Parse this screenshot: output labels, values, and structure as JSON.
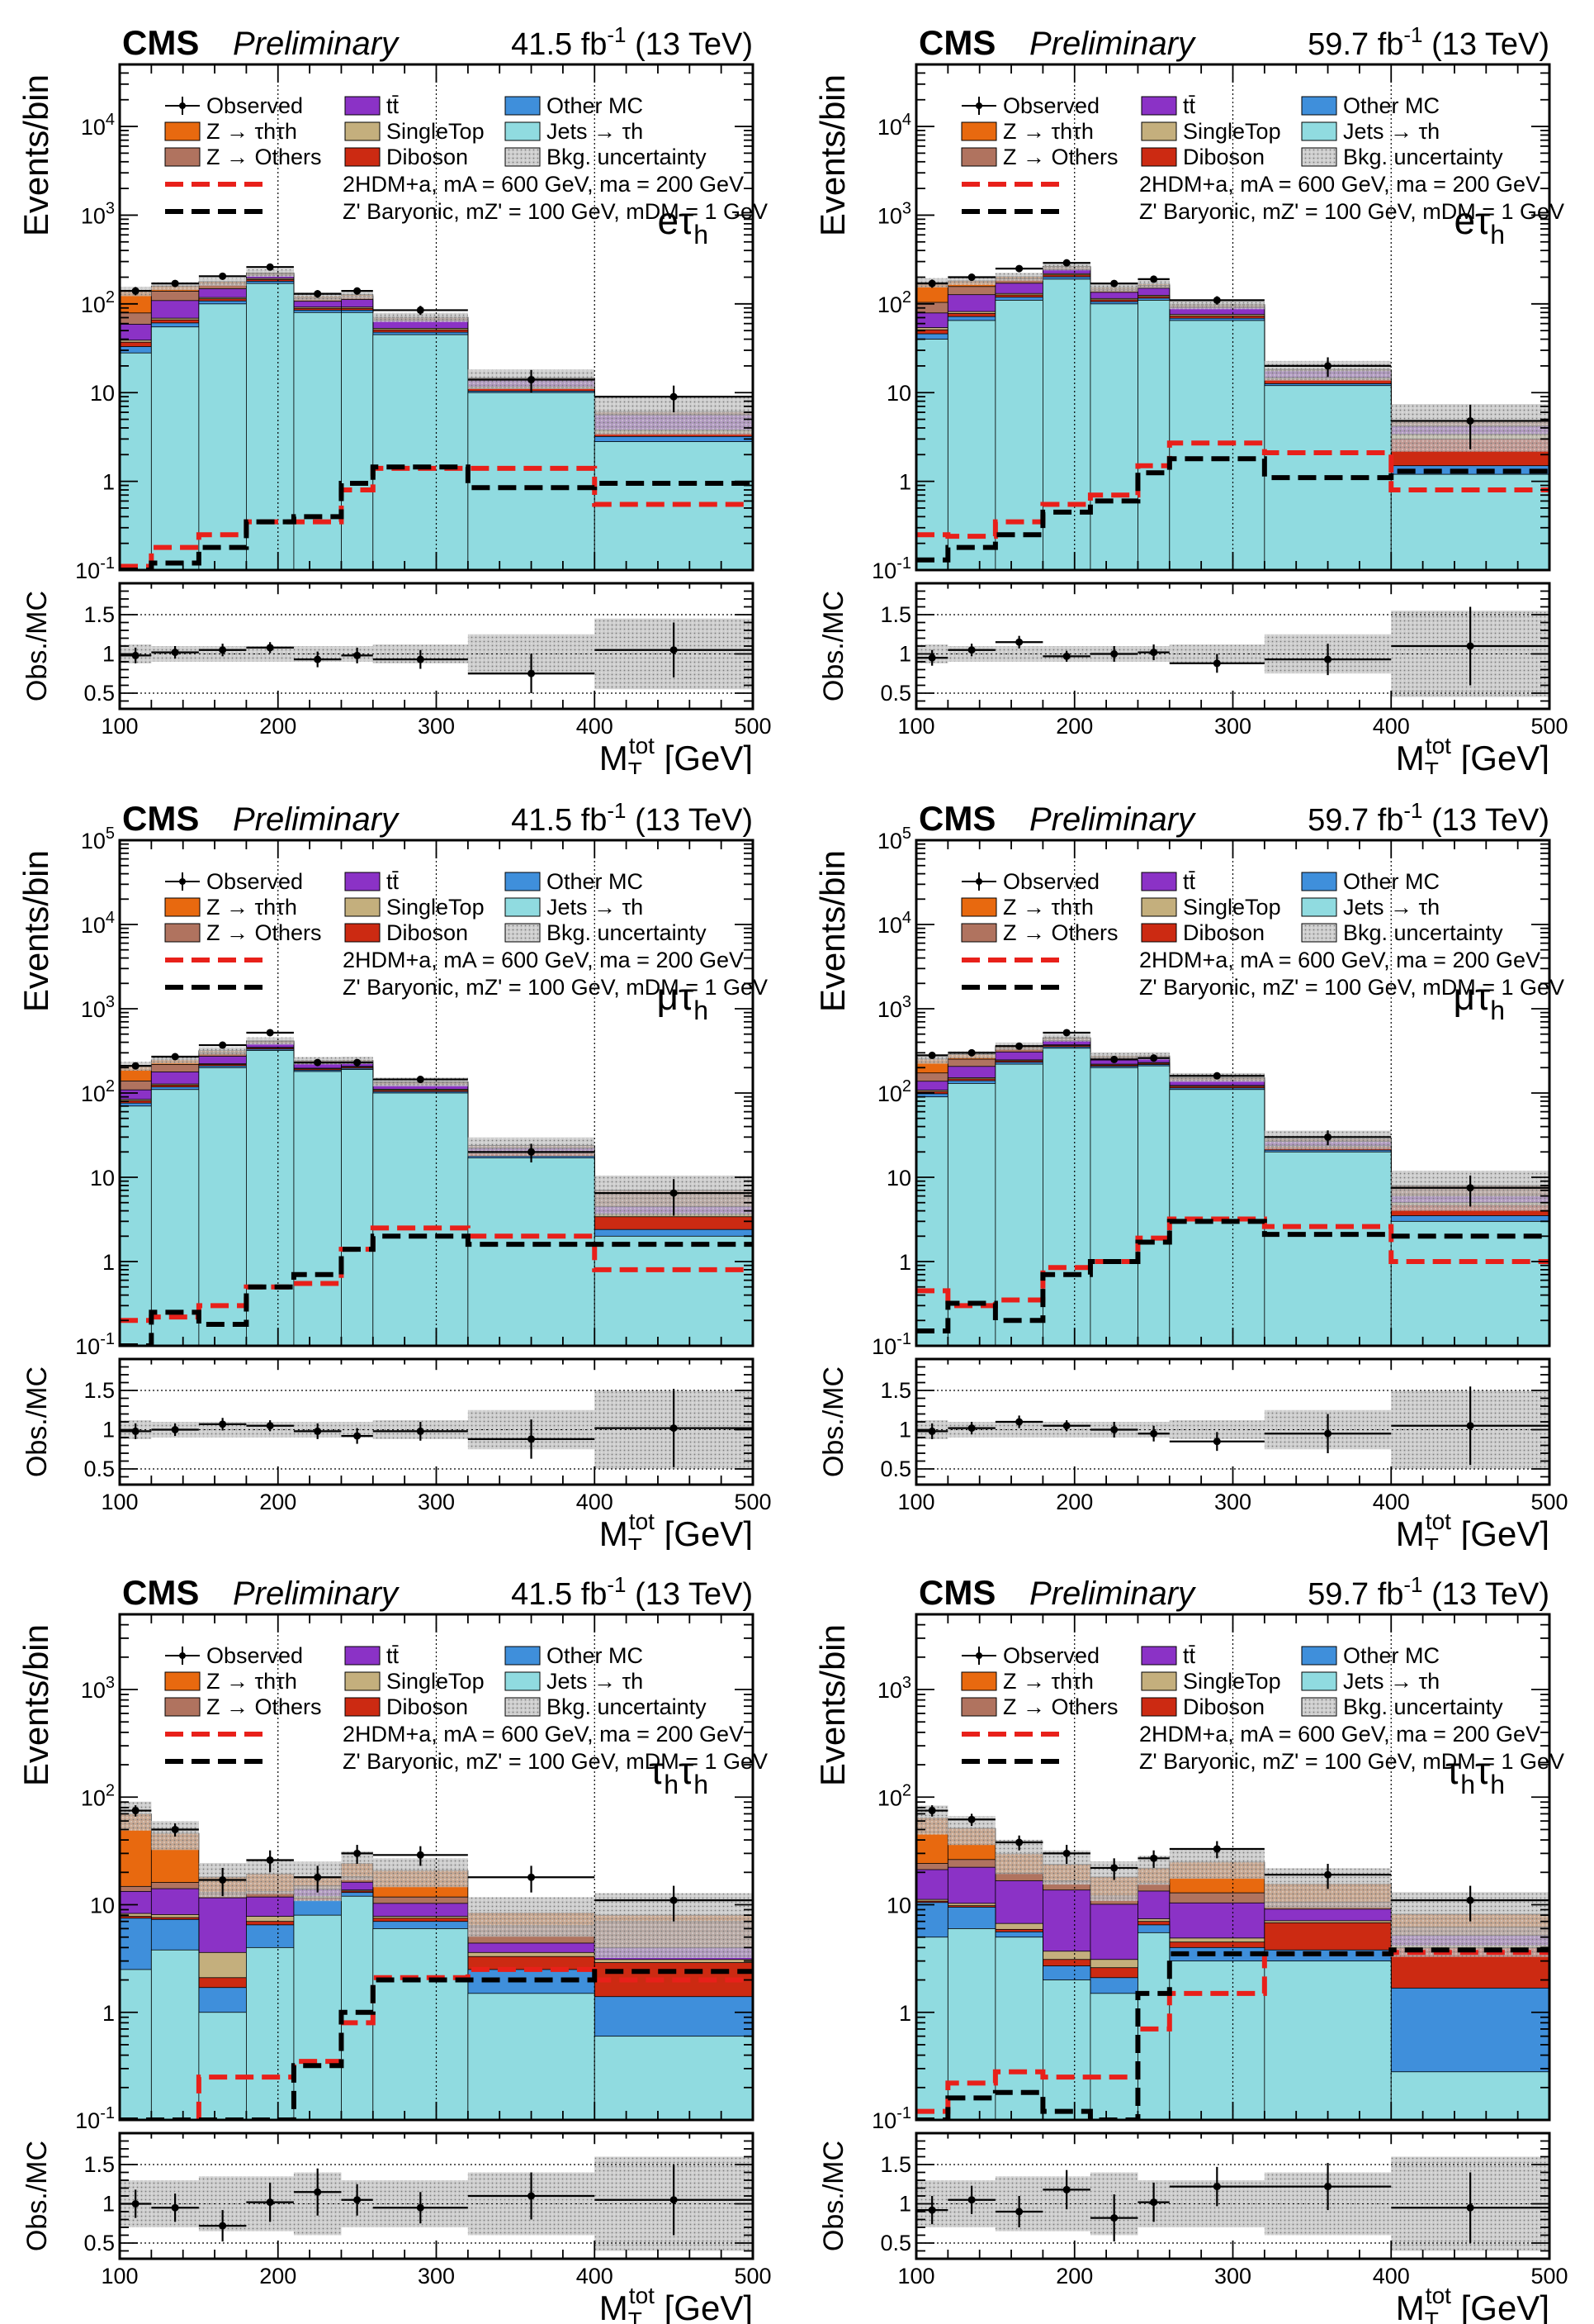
{
  "legend": {
    "observed": "Observed",
    "ztt": "Z → τhτh",
    "zothers": "Z → Others",
    "ttbar": "tt̄",
    "singletop": "SingleTop",
    "diboson": "Diboson",
    "othermc": "Other MC",
    "jetstau": "Jets → τh",
    "bkgunc": "Bkg. uncertainty",
    "sig1": "2HDM+a, mA = 600 GeV, ma = 200 GeV",
    "sig2": "Z' Baryonic, mZ' = 100 GeV, mDM = 1 GeV"
  },
  "labels": {
    "cms": "CMS",
    "preliminary": "Preliminary",
    "ylabel_main": "Events/bin",
    "ylabel_ratio": "Obs./MC",
    "xlabel": "MTtot [GeV]"
  },
  "colors": {
    "jets": "#90DBE0",
    "othermc": "#3F8FDB",
    "diboson": "#CC2A12",
    "singletop": "#C4AF7D",
    "ttbar": "#8B32C6",
    "zothers": "#B0735F",
    "ztt": "#E8690F",
    "sig1": "#E8201A",
    "sig2": "#000000"
  },
  "chart_data": [
    {
      "id": "etau-2017",
      "type": "bar",
      "channel": "eτh",
      "lumi": "41.5 fb-1 (13 TeV)",
      "bins": [
        100,
        120,
        150,
        180,
        210,
        240,
        260,
        320,
        400,
        500
      ],
      "x_ticks": [
        "100",
        "200",
        "300",
        "400",
        "500"
      ],
      "ylim": [
        0.1,
        50000
      ],
      "y_ticks": [
        "10-1",
        "1",
        "10",
        "102",
        "103",
        "104"
      ],
      "ratio_ylim": [
        0.3,
        1.9
      ],
      "ratio_ticks": [
        "0.5",
        "1",
        "1.5"
      ],
      "stack": {
        "jets": [
          28,
          55,
          100,
          170,
          80,
          80,
          45,
          10,
          2.8
        ],
        "othermc": [
          5,
          6,
          8,
          10,
          5,
          5,
          3,
          0.4,
          0.4
        ],
        "diboson": [
          4,
          5,
          6,
          8,
          4,
          4,
          3,
          0.8,
          0.3
        ],
        "singletop": [
          2,
          3,
          4,
          6,
          3,
          3,
          2,
          0.4,
          0.3
        ],
        "ttbar": [
          20,
          40,
          30,
          15,
          15,
          20,
          12,
          2.5,
          1.8
        ],
        "zothers": [
          20,
          30,
          20,
          10,
          10,
          10,
          5,
          0.5,
          0.5
        ],
        "ztt": [
          60,
          20,
          10,
          5,
          5,
          5,
          1,
          0,
          0
        ]
      },
      "bkg_unc": [
        0.12,
        0.1,
        0.1,
        0.1,
        0.1,
        0.1,
        0.12,
        0.25,
        0.45
      ],
      "observed": [
        140,
        170,
        205,
        260,
        130,
        140,
        85,
        14,
        9
      ],
      "obs_err": [
        15,
        15,
        18,
        20,
        13,
        13,
        10,
        4,
        3
      ],
      "ratio": [
        0.98,
        1.02,
        1.05,
        1.08,
        0.93,
        0.98,
        0.93,
        0.75,
        1.05
      ],
      "ratio_err": [
        0.1,
        0.08,
        0.08,
        0.07,
        0.1,
        0.1,
        0.12,
        0.25,
        0.35
      ],
      "sig1": [
        0.11,
        0.18,
        0.25,
        0.35,
        0.35,
        0.8,
        1.4,
        1.4,
        0.55
      ],
      "sig2": [
        0.1,
        0.12,
        0.18,
        0.35,
        0.4,
        0.95,
        1.45,
        0.85,
        0.95
      ]
    },
    {
      "id": "etau-2018",
      "type": "bar",
      "channel": "eτh",
      "lumi": "59.7 fb-1 (13 TeV)",
      "bins": [
        100,
        120,
        150,
        180,
        210,
        240,
        260,
        320,
        400,
        500
      ],
      "x_ticks": [
        "100",
        "200",
        "300",
        "400",
        "500"
      ],
      "ylim": [
        0.1,
        50000
      ],
      "y_ticks": [
        "10-1",
        "1",
        "10",
        "102",
        "103",
        "104"
      ],
      "ratio_ylim": [
        0.3,
        1.9
      ],
      "ratio_ticks": [
        "0.5",
        "1",
        "1.5"
      ],
      "stack": {
        "jets": [
          40,
          65,
          110,
          190,
          100,
          110,
          65,
          12,
          1.2
        ],
        "othermc": [
          6,
          7,
          9,
          12,
          6,
          6,
          4,
          0.6,
          0.3
        ],
        "diboson": [
          5,
          6,
          7,
          10,
          5,
          5,
          4,
          1.5,
          1.5
        ],
        "singletop": [
          3,
          4,
          5,
          7,
          4,
          4,
          3,
          0.5,
          0.4
        ],
        "ttbar": [
          25,
          45,
          40,
          25,
          20,
          25,
          15,
          3,
          0.8
        ],
        "zothers": [
          25,
          30,
          20,
          15,
          12,
          12,
          6,
          0.6,
          0.6
        ],
        "ztt": [
          70,
          25,
          12,
          6,
          6,
          6,
          2,
          0,
          0
        ]
      },
      "bkg_unc": [
        0.12,
        0.1,
        0.1,
        0.1,
        0.1,
        0.1,
        0.12,
        0.25,
        0.55
      ],
      "observed": [
        170,
        200,
        250,
        290,
        170,
        190,
        110,
        20,
        4.8
      ],
      "obs_err": [
        18,
        18,
        20,
        22,
        15,
        15,
        12,
        5,
        2.5
      ],
      "ratio": [
        0.95,
        1.05,
        1.15,
        0.97,
        1.0,
        1.02,
        0.88,
        0.93,
        1.1
      ],
      "ratio_err": [
        0.1,
        0.08,
        0.08,
        0.07,
        0.1,
        0.1,
        0.12,
        0.2,
        0.5
      ],
      "sig1": [
        0.25,
        0.24,
        0.35,
        0.55,
        0.7,
        1.5,
        2.7,
        2.1,
        0.8
      ],
      "sig2": [
        0.13,
        0.18,
        0.25,
        0.45,
        0.6,
        1.25,
        1.8,
        1.1,
        1.3
      ]
    },
    {
      "id": "mutau-2017",
      "type": "bar",
      "channel": "μτh",
      "lumi": "41.5 fb-1 (13 TeV)",
      "bins": [
        100,
        120,
        150,
        180,
        210,
        240,
        260,
        320,
        400,
        500
      ],
      "x_ticks": [
        "100",
        "200",
        "300",
        "400",
        "500"
      ],
      "ylim": [
        0.1,
        100000
      ],
      "y_ticks": [
        "10-1",
        "1",
        "10",
        "102",
        "103",
        "104",
        "105"
      ],
      "ratio_ylim": [
        0.3,
        1.9
      ],
      "ratio_ticks": [
        "0.5",
        "1",
        "1.5"
      ],
      "stack": {
        "jets": [
          70,
          110,
          200,
          320,
          180,
          190,
          100,
          17,
          2.0
        ],
        "othermc": [
          6,
          8,
          10,
          12,
          7,
          7,
          4,
          0.8,
          0.4
        ],
        "diboson": [
          5,
          6,
          8,
          10,
          6,
          6,
          4,
          1.5,
          1.0
        ],
        "singletop": [
          3,
          4,
          5,
          6,
          4,
          4,
          3,
          0.5,
          0.3
        ],
        "ttbar": [
          25,
          50,
          50,
          40,
          25,
          20,
          15,
          2.5,
          0.8
        ],
        "zothers": [
          30,
          40,
          30,
          20,
          15,
          12,
          8,
          1.5,
          2.5
        ],
        "ztt": [
          70,
          30,
          15,
          8,
          6,
          6,
          2,
          0,
          0
        ]
      },
      "bkg_unc": [
        0.12,
        0.1,
        0.1,
        0.1,
        0.1,
        0.1,
        0.12,
        0.25,
        0.5
      ],
      "observed": [
        210,
        270,
        370,
        520,
        230,
        230,
        145,
        20,
        6.5
      ],
      "obs_err": [
        20,
        20,
        25,
        30,
        18,
        18,
        14,
        5,
        3
      ],
      "ratio": [
        0.98,
        1.0,
        1.07,
        1.05,
        0.98,
        0.92,
        0.98,
        0.88,
        1.02
      ],
      "ratio_err": [
        0.1,
        0.08,
        0.08,
        0.07,
        0.1,
        0.1,
        0.12,
        0.25,
        0.5
      ],
      "sig1": [
        0.2,
        0.22,
        0.3,
        0.5,
        0.55,
        1.4,
        2.5,
        2.0,
        0.8
      ],
      "sig2": [
        0.1,
        0.25,
        0.18,
        0.5,
        0.7,
        1.4,
        2.0,
        1.6,
        1.6
      ]
    },
    {
      "id": "mutau-2018",
      "type": "bar",
      "channel": "μτh",
      "lumi": "59.7 fb-1 (13 TeV)",
      "bins": [
        100,
        120,
        150,
        180,
        210,
        240,
        260,
        320,
        400,
        500
      ],
      "x_ticks": [
        "100",
        "200",
        "300",
        "400",
        "500"
      ],
      "ylim": [
        0.1,
        100000
      ],
      "y_ticks": [
        "10-1",
        "1",
        "10",
        "102",
        "103",
        "104",
        "105"
      ],
      "ratio_ylim": [
        0.3,
        1.9
      ],
      "ratio_ticks": [
        "0.5",
        "1",
        "1.5"
      ],
      "stack": {
        "jets": [
          90,
          130,
          220,
          340,
          200,
          210,
          110,
          20,
          3.0
        ],
        "othermc": [
          8,
          10,
          12,
          14,
          8,
          8,
          5,
          1.0,
          0.5
        ],
        "diboson": [
          6,
          7,
          9,
          12,
          7,
          7,
          5,
          2.0,
          1.2
        ],
        "singletop": [
          4,
          5,
          6,
          7,
          5,
          5,
          3,
          0.6,
          0.3
        ],
        "ttbar": [
          30,
          55,
          60,
          45,
          30,
          25,
          18,
          3,
          1.0
        ],
        "zothers": [
          35,
          45,
          35,
          25,
          18,
          15,
          10,
          2,
          2.0
        ],
        "ztt": [
          80,
          35,
          20,
          10,
          8,
          7,
          3,
          0,
          0
        ]
      },
      "bkg_unc": [
        0.12,
        0.1,
        0.1,
        0.1,
        0.1,
        0.1,
        0.12,
        0.25,
        0.5
      ],
      "observed": [
        280,
        300,
        360,
        520,
        250,
        260,
        160,
        30,
        7.5
      ],
      "obs_err": [
        22,
        22,
        25,
        30,
        18,
        18,
        15,
        6,
        3
      ],
      "ratio": [
        0.98,
        1.02,
        1.1,
        1.05,
        1.0,
        0.95,
        0.85,
        0.95,
        1.05
      ],
      "ratio_err": [
        0.1,
        0.08,
        0.08,
        0.07,
        0.1,
        0.1,
        0.12,
        0.25,
        0.5
      ],
      "sig1": [
        0.45,
        0.3,
        0.35,
        0.85,
        1.0,
        1.9,
        3.2,
        2.6,
        1.0
      ],
      "sig2": [
        0.15,
        0.32,
        0.2,
        0.7,
        1.0,
        1.7,
        3.0,
        2.1,
        2.0
      ]
    },
    {
      "id": "tautau-2017",
      "type": "bar",
      "channel": "τhτh",
      "lumi": "41.5 fb-1 (13 TeV)",
      "bins": [
        100,
        120,
        150,
        180,
        210,
        240,
        260,
        320,
        400,
        500
      ],
      "x_ticks": [
        "100",
        "200",
        "300",
        "400",
        "500"
      ],
      "ylim": [
        0.1,
        5000
      ],
      "y_ticks": [
        "10-1",
        "1",
        "10",
        "102",
        "103"
      ],
      "ratio_ylim": [
        0.3,
        1.9
      ],
      "ratio_ticks": [
        "0.5",
        "1",
        "1.5"
      ],
      "stack": {
        "jets": [
          2.5,
          3.8,
          1.0,
          4.0,
          8.0,
          12.0,
          6.0,
          1.5,
          0.6
        ],
        "othermc": [
          5.0,
          3.5,
          0.7,
          2.5,
          3.0,
          1.0,
          1.0,
          1.0,
          0.8
        ],
        "diboson": [
          0.3,
          0.3,
          0.4,
          0.5,
          0.5,
          0.4,
          0.5,
          0.8,
          1.5
        ],
        "singletop": [
          0.5,
          0.5,
          1.5,
          0.8,
          0.5,
          0.3,
          0.3,
          0.3,
          0.2
        ],
        "ttbar": [
          5.0,
          6.0,
          8.0,
          4.0,
          2.0,
          2.5,
          2.5,
          0.8,
          0.9
        ],
        "zothers": [
          1.5,
          2.0,
          1.5,
          1.5,
          1.0,
          2.0,
          1.5,
          2.0,
          3.0
        ],
        "ztt": [
          55.0,
          30.0,
          5.0,
          6.0,
          3.0,
          6.0,
          9.0,
          2.0,
          1.0
        ]
      },
      "bkg_unc": [
        0.3,
        0.3,
        0.35,
        0.35,
        0.4,
        0.3,
        0.3,
        0.4,
        0.6
      ],
      "observed": [
        75,
        50,
        17,
        26,
        18,
        30,
        29,
        18,
        11
      ],
      "obs_err": [
        9,
        7,
        5,
        6,
        5,
        6,
        6,
        5,
        4
      ],
      "ratio": [
        1.0,
        0.95,
        0.72,
        1.02,
        1.15,
        1.05,
        0.95,
        1.1,
        1.05
      ],
      "ratio_err": [
        0.18,
        0.18,
        0.2,
        0.25,
        0.3,
        0.2,
        0.2,
        0.3,
        0.45
      ],
      "sig1": [
        0.1,
        0.1,
        0.25,
        0.25,
        0.35,
        0.8,
        2.1,
        2.5,
        2.0
      ],
      "sig2": [
        0.1,
        0.1,
        0.1,
        0.1,
        0.32,
        1.0,
        2.0,
        2.0,
        2.4
      ]
    },
    {
      "id": "tautau-2018",
      "type": "bar",
      "channel": "τhτh",
      "lumi": "59.7 fb-1 (13 TeV)",
      "bins": [
        100,
        120,
        150,
        180,
        210,
        240,
        260,
        320,
        400,
        500
      ],
      "x_ticks": [
        "100",
        "200",
        "300",
        "400",
        "500"
      ],
      "ylim": [
        0.1,
        5000
      ],
      "y_ticks": [
        "10-1",
        "1",
        "10",
        "102",
        "103"
      ],
      "ratio_ylim": [
        0.3,
        1.9
      ],
      "ratio_ticks": [
        "0.5",
        "1",
        "1.5"
      ],
      "stack": {
        "jets": [
          5.0,
          6.0,
          5.0,
          2.0,
          1.5,
          5.5,
          3.0,
          3.0,
          0.28
        ],
        "othermc": [
          5.5,
          3.5,
          0.6,
          0.7,
          0.6,
          1.0,
          1.0,
          0.8,
          1.4
        ],
        "diboson": [
          0.3,
          0.3,
          0.3,
          0.4,
          0.5,
          0.5,
          0.5,
          3.0,
          2.3
        ],
        "singletop": [
          0.4,
          0.5,
          0.8,
          0.6,
          0.5,
          0.4,
          0.4,
          0.3,
          0.2
        ],
        "ttbar": [
          10.0,
          12.0,
          10.0,
          10.0,
          7.0,
          6.0,
          5.5,
          2.0,
          1.0
        ],
        "zothers": [
          3.0,
          4.0,
          3.0,
          3.0,
          2.0,
          2.5,
          2.5,
          1.5,
          1.0
        ],
        "ztt": [
          40.0,
          25.0,
          10.0,
          7.0,
          6.0,
          6.0,
          12.0,
          5.0,
          2.0
        ]
      },
      "bkg_unc": [
        0.3,
        0.3,
        0.35,
        0.35,
        0.4,
        0.3,
        0.3,
        0.4,
        0.6
      ],
      "observed": [
        75,
        62,
        38,
        30,
        22,
        27,
        33,
        19,
        11
      ],
      "obs_err": [
        9,
        8,
        6,
        6,
        5,
        5,
        6,
        5,
        4
      ],
      "ratio": [
        0.92,
        1.05,
        0.9,
        1.18,
        0.82,
        1.02,
        1.22,
        1.22,
        0.95
      ],
      "ratio_err": [
        0.18,
        0.18,
        0.2,
        0.25,
        0.3,
        0.25,
        0.25,
        0.3,
        0.45
      ],
      "sig1": [
        0.12,
        0.22,
        0.28,
        0.25,
        0.25,
        0.7,
        1.5,
        3.5,
        3.6
      ],
      "sig2": [
        0.1,
        0.16,
        0.18,
        0.12,
        0.1,
        1.5,
        3.5,
        3.5,
        3.8
      ]
    }
  ]
}
